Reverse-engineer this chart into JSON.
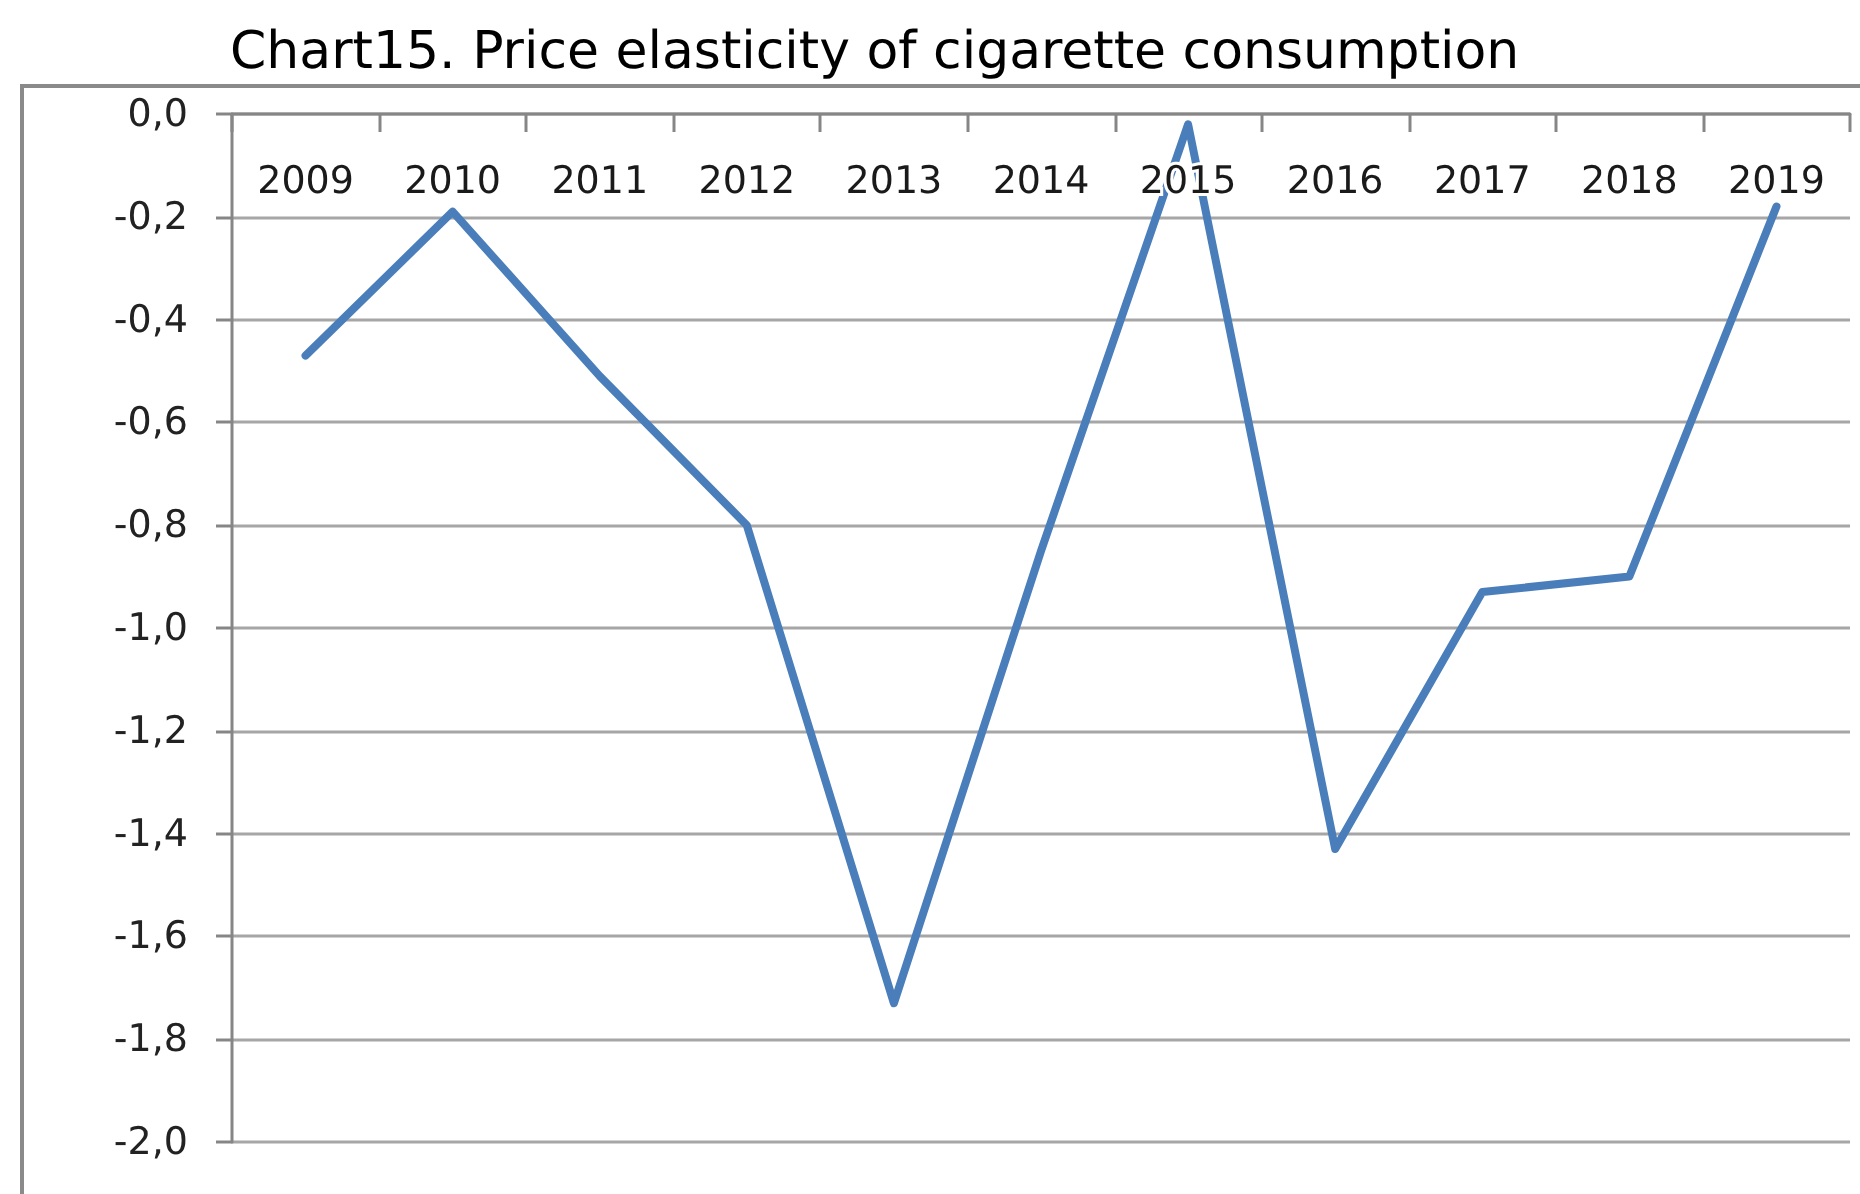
{
  "chart_data": {
    "type": "line",
    "title": "Chart15. Price elasticity of cigarette consumption",
    "categories": [
      "2009",
      "2010",
      "2011",
      "2012",
      "2013",
      "2014",
      "2015",
      "2016",
      "2017",
      "2018",
      "2019"
    ],
    "values": [
      -0.47,
      -0.19,
      -0.51,
      -0.8,
      -1.73,
      -0.85,
      -0.02,
      -1.43,
      -0.93,
      -0.9,
      -0.18
    ],
    "color": "#4a7ebb",
    "ylim": [
      -2.0,
      0.0
    ],
    "yticks": [
      {
        "value": 0,
        "label": "0,0"
      },
      {
        "value": -0.2,
        "label": "-0,2"
      },
      {
        "value": -0.4,
        "label": "-0,4"
      },
      {
        "value": -0.6,
        "label": "-0,6"
      },
      {
        "value": -0.8,
        "label": "-0,8"
      },
      {
        "value": -1.0,
        "label": "-1,0"
      },
      {
        "value": -1.2,
        "label": "-1,2"
      },
      {
        "value": -1.4,
        "label": "-1,4"
      },
      {
        "value": -1.6,
        "label": "-1,6"
      },
      {
        "value": -1.8,
        "label": "-1,8"
      },
      {
        "value": -2.0,
        "label": "-2,0"
      }
    ],
    "grid": "y",
    "marker": "none",
    "line_style": "solid"
  }
}
